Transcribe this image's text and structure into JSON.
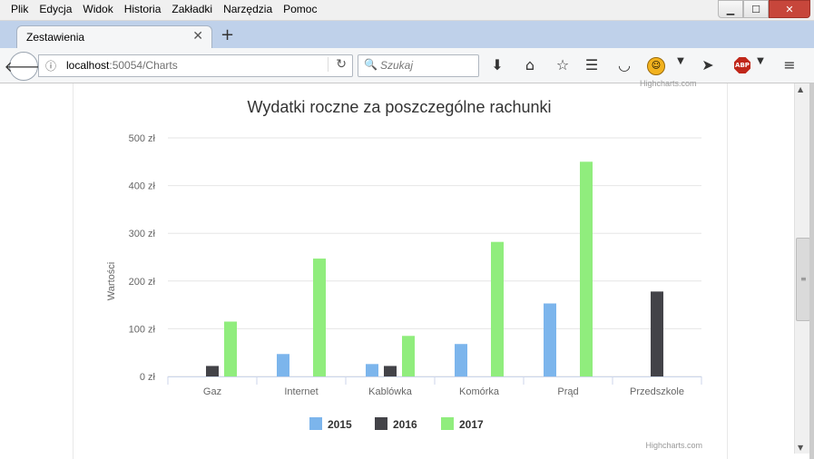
{
  "menu": [
    "Plik",
    "Edycja",
    "Widok",
    "Historia",
    "Zakładki",
    "Narzędzia",
    "Pomoc"
  ],
  "window": {
    "minimize": "▁",
    "maximize": "☐",
    "close": "✕"
  },
  "tab": {
    "title": "Zestawienia",
    "close": "✕",
    "new": "+"
  },
  "url": {
    "host": "localhost",
    "rest": ":50054/Charts"
  },
  "search": {
    "placeholder": "Szukaj"
  },
  "credits": "Highcharts.com",
  "chart_data": {
    "type": "bar",
    "title": "Wydatki roczne za poszczególne rachunki",
    "ylabel": "Wartości",
    "ylim": [
      0,
      500
    ],
    "yticks": [
      "0 zł",
      "100 zł",
      "200 zł",
      "300 zł",
      "400 zł",
      "500 zł"
    ],
    "ytick_values": [
      0,
      100,
      200,
      300,
      400,
      500
    ],
    "categories": [
      "Gaz",
      "Internet",
      "Kablówka",
      "Komórka",
      "Prąd",
      "Przedszkole"
    ],
    "series": [
      {
        "name": "2015",
        "color": "#7cb5ec",
        "values": [
          0,
          47,
          26,
          68,
          153,
          0
        ]
      },
      {
        "name": "2016",
        "color": "#434348",
        "values": [
          22,
          0,
          22,
          0,
          0,
          178
        ]
      },
      {
        "name": "2017",
        "color": "#90ed7d",
        "values": [
          115,
          247,
          85,
          282,
          450,
          0
        ]
      }
    ],
    "legend_position": "bottom-center",
    "grid": true
  }
}
